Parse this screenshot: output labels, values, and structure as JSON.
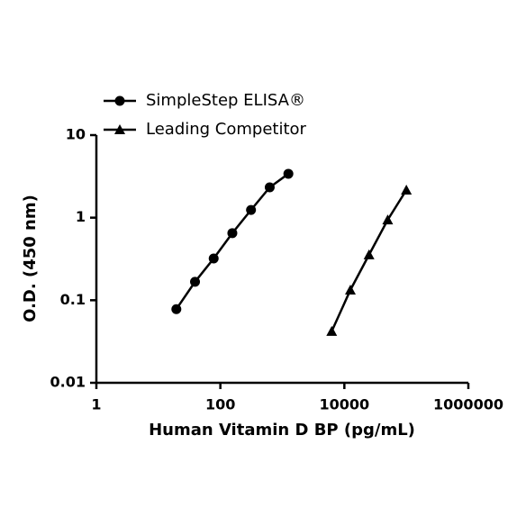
{
  "chart_data": {
    "type": "line",
    "x_label": "Human Vitamin D BP (pg/mL)",
    "y_label": "O.D. (450 nm)",
    "xscale": "log",
    "yscale": "log",
    "xlim": [
      1,
      1000000
    ],
    "ylim": [
      0.01,
      10
    ],
    "xticks": [
      1,
      100,
      10000,
      1000000
    ],
    "yticks": [
      0.01,
      0.1,
      1,
      10
    ],
    "legend": "top-left",
    "series": [
      {
        "name": "SimpleStep ELISA®",
        "color": "#000000",
        "marker": "circle",
        "x": [
          19.5,
          39,
          78,
          156,
          312,
          625,
          1250
        ],
        "values": [
          0.078,
          0.167,
          0.32,
          0.65,
          1.24,
          2.33,
          3.4
        ]
      },
      {
        "name": "Leading Competitor",
        "color": "#000000",
        "marker": "triangle",
        "x": [
          6250,
          12500,
          25000,
          50000,
          100000
        ],
        "values": [
          0.042,
          0.133,
          0.355,
          0.94,
          2.16
        ]
      }
    ]
  }
}
